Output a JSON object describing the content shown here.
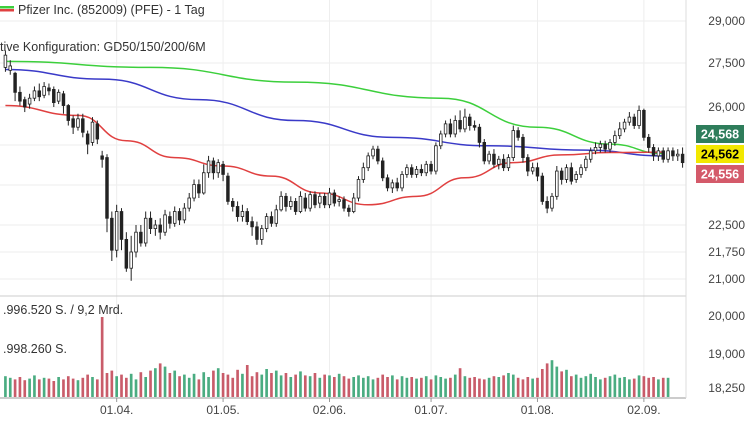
{
  "header": {
    "title": "Pfizer Inc. (852009) (PFE) - 1 Tag",
    "config": "tive Konfiguration: GD50/150/200/6M",
    "volume_line1": ".996.520 S. / 9,2 Mrd.",
    "volume_line2": ".998.260 S."
  },
  "colors": {
    "up": "#2a9d6b",
    "down": "#c04050",
    "ma_green": "#3ccf3c",
    "ma_blue": "#3a3ac8",
    "ma_red": "#e04040",
    "badge_green": "#2e7d5b",
    "badge_yellow": "#f2e800",
    "badge_red": "#d45a6a"
  },
  "badges": [
    {
      "label": "24,568",
      "color": "#2e7d5b",
      "text_color": "#ffffff"
    },
    {
      "label": "24,562",
      "color": "#f2e800",
      "text_color": "#000000"
    },
    {
      "label": "24,556",
      "color": "#d45a6a",
      "text_color": "#ffffff"
    }
  ],
  "chart_data": {
    "type": "candlestick",
    "price_axis": {
      "ticks": [
        {
          "value": 29.0,
          "label": "29,000"
        },
        {
          "value": 27.5,
          "label": "27,500"
        },
        {
          "value": 26.0,
          "label": "26,000"
        },
        {
          "value": 22.5,
          "label": "22,500"
        },
        {
          "value": 21.75,
          "label": "21,750"
        },
        {
          "value": 21.0,
          "label": "21,000"
        }
      ]
    },
    "volume_axis": {
      "ticks": [
        {
          "label": "20,000"
        },
        {
          "label": "19,000"
        },
        {
          "label": "18,250"
        }
      ]
    },
    "x_ticks": [
      {
        "label": "01.04.",
        "index": 23
      },
      {
        "label": "01.05.",
        "index": 45
      },
      {
        "label": "02.06.",
        "index": 67
      },
      {
        "label": "01.07.",
        "index": 88
      },
      {
        "label": "01.08.",
        "index": 110
      },
      {
        "label": "02.09.",
        "index": 132
      }
    ],
    "moving_averages": [
      {
        "color": "#3ccf3c",
        "points": [
          [
            0,
            27.56
          ],
          [
            30,
            27.35
          ],
          [
            60,
            26.85
          ],
          [
            90,
            26.3
          ],
          [
            110,
            25.4
          ],
          [
            125,
            24.9
          ],
          [
            136,
            24.62
          ]
        ]
      },
      {
        "color": "#3a3ac8",
        "points": [
          [
            0,
            27.28
          ],
          [
            20,
            26.95
          ],
          [
            40,
            26.25
          ],
          [
            60,
            25.6
          ],
          [
            80,
            25.1
          ],
          [
            100,
            24.85
          ],
          [
            120,
            24.72
          ],
          [
            136,
            24.55
          ]
        ]
      },
      {
        "color": "#e04040",
        "points": [
          [
            0,
            26.05
          ],
          [
            15,
            25.75
          ],
          [
            25,
            25.0
          ],
          [
            35,
            24.5
          ],
          [
            45,
            24.25
          ],
          [
            55,
            23.95
          ],
          [
            65,
            23.45
          ],
          [
            75,
            23.1
          ],
          [
            85,
            23.35
          ],
          [
            95,
            23.9
          ],
          [
            105,
            24.35
          ],
          [
            115,
            24.58
          ],
          [
            125,
            24.65
          ],
          [
            136,
            24.66
          ]
        ]
      }
    ],
    "candles": [
      [
        27.35,
        27.78,
        27.95,
        27.2
      ],
      [
        27.25,
        27.4,
        27.6,
        27.1
      ],
      [
        27.15,
        26.5,
        27.2,
        26.2
      ],
      [
        26.5,
        26.2,
        26.7,
        26.05
      ],
      [
        26.25,
        26.0,
        26.35,
        25.85
      ],
      [
        26.1,
        26.3,
        26.45,
        25.95
      ],
      [
        26.3,
        26.55,
        26.7,
        26.2
      ],
      [
        26.55,
        26.35,
        26.8,
        26.2
      ],
      [
        26.4,
        26.7,
        26.85,
        26.3
      ],
      [
        26.65,
        26.55,
        26.8,
        26.4
      ],
      [
        26.6,
        26.15,
        26.7,
        26.0
      ],
      [
        26.2,
        26.5,
        26.6,
        26.1
      ],
      [
        26.45,
        26.05,
        26.55,
        25.8
      ],
      [
        26.05,
        25.6,
        26.1,
        25.45
      ],
      [
        25.65,
        25.4,
        25.75,
        25.2
      ],
      [
        25.4,
        25.65,
        25.8,
        25.3
      ],
      [
        25.65,
        25.25,
        25.8,
        25.1
      ],
      [
        25.2,
        24.9,
        25.3,
        24.6
      ],
      [
        24.95,
        25.55,
        25.7,
        24.85
      ],
      [
        25.5,
        25.05,
        25.6,
        24.9
      ],
      [
        24.55,
        24.45,
        24.7,
        24.2
      ],
      [
        24.5,
        22.7,
        24.6,
        22.3
      ],
      [
        22.7,
        21.8,
        22.9,
        21.5
      ],
      [
        21.8,
        22.9,
        23.1,
        21.6
      ],
      [
        22.9,
        22.1,
        23.0,
        21.8
      ],
      [
        22.1,
        21.3,
        22.3,
        21.2
      ],
      [
        21.3,
        21.75,
        22.2,
        20.95
      ],
      [
        21.75,
        22.3,
        22.5,
        21.6
      ],
      [
        22.3,
        22.0,
        22.5,
        21.9
      ],
      [
        22.0,
        22.7,
        22.9,
        21.9
      ],
      [
        22.7,
        22.4,
        22.9,
        22.25
      ],
      [
        22.4,
        22.5,
        22.65,
        22.2
      ],
      [
        22.5,
        22.3,
        22.7,
        22.1
      ],
      [
        22.3,
        22.8,
        22.95,
        22.2
      ],
      [
        22.75,
        22.55,
        22.9,
        22.4
      ],
      [
        22.55,
        22.9,
        23.05,
        22.45
      ],
      [
        22.9,
        22.65,
        23.0,
        22.5
      ],
      [
        22.65,
        23.0,
        23.15,
        22.55
      ],
      [
        23.0,
        23.3,
        23.45,
        22.9
      ],
      [
        23.3,
        23.7,
        23.85,
        23.2
      ],
      [
        23.7,
        23.45,
        23.85,
        23.3
      ],
      [
        23.45,
        24.05,
        24.3,
        23.4
      ],
      [
        24.05,
        24.4,
        24.55,
        23.9
      ],
      [
        24.4,
        24.05,
        24.5,
        23.85
      ],
      [
        24.05,
        24.35,
        24.45,
        23.9
      ],
      [
        24.3,
        24.0,
        24.4,
        23.8
      ],
      [
        23.95,
        23.2,
        24.05,
        23.1
      ],
      [
        23.2,
        23.05,
        23.3,
        22.9
      ],
      [
        23.05,
        22.75,
        23.2,
        22.6
      ],
      [
        22.75,
        22.9,
        23.1,
        22.6
      ],
      [
        22.9,
        22.6,
        23.0,
        22.5
      ],
      [
        22.6,
        22.45,
        22.75,
        22.2
      ],
      [
        22.45,
        22.1,
        22.6,
        21.95
      ],
      [
        22.1,
        22.4,
        22.5,
        21.95
      ],
      [
        22.4,
        22.75,
        22.85,
        22.3
      ],
      [
        22.75,
        22.55,
        22.9,
        22.45
      ],
      [
        22.55,
        22.95,
        23.1,
        22.45
      ],
      [
        22.95,
        23.35,
        23.5,
        22.9
      ],
      [
        23.35,
        23.05,
        23.45,
        22.9
      ],
      [
        23.05,
        23.2,
        23.35,
        22.95
      ],
      [
        23.2,
        22.9,
        23.3,
        22.8
      ],
      [
        22.9,
        23.35,
        23.5,
        22.85
      ],
      [
        23.3,
        23.0,
        23.45,
        22.9
      ],
      [
        23.0,
        23.4,
        23.5,
        22.9
      ],
      [
        23.4,
        23.1,
        23.5,
        23.0
      ],
      [
        23.15,
        23.35,
        23.45,
        23.0
      ],
      [
        23.35,
        23.1,
        23.45,
        23.0
      ],
      [
        23.1,
        23.45,
        23.6,
        23.0
      ],
      [
        23.45,
        23.15,
        23.55,
        23.05
      ],
      [
        23.2,
        23.25,
        23.35,
        23.05
      ],
      [
        23.25,
        23.0,
        23.35,
        22.9
      ],
      [
        23.0,
        22.9,
        23.1,
        22.75
      ],
      [
        22.9,
        23.3,
        23.45,
        22.85
      ],
      [
        23.3,
        23.85,
        23.95,
        23.2
      ],
      [
        23.85,
        24.2,
        24.35,
        23.75
      ],
      [
        24.2,
        24.55,
        24.65,
        24.1
      ],
      [
        24.55,
        24.75,
        24.85,
        24.45
      ],
      [
        24.75,
        24.4,
        24.85,
        24.3
      ],
      [
        24.4,
        23.9,
        24.5,
        23.8
      ],
      [
        23.9,
        23.6,
        24.0,
        23.5
      ],
      [
        23.6,
        23.75,
        23.85,
        23.45
      ],
      [
        23.75,
        23.6,
        23.9,
        23.5
      ],
      [
        23.6,
        24.0,
        24.1,
        23.5
      ],
      [
        24.0,
        24.2,
        24.3,
        23.9
      ],
      [
        24.2,
        24.0,
        24.3,
        23.9
      ],
      [
        24.0,
        24.15,
        24.25,
        23.9
      ],
      [
        24.15,
        24.05,
        24.3,
        23.95
      ],
      [
        24.05,
        24.3,
        24.4,
        23.95
      ],
      [
        24.3,
        24.1,
        24.4,
        24.0
      ],
      [
        24.1,
        24.85,
        24.95,
        24.0
      ],
      [
        24.85,
        25.2,
        25.3,
        24.75
      ],
      [
        25.2,
        25.5,
        25.6,
        25.1
      ],
      [
        25.5,
        25.2,
        25.65,
        25.1
      ],
      [
        25.2,
        25.6,
        25.75,
        25.1
      ],
      [
        25.6,
        25.35,
        25.9,
        25.25
      ],
      [
        25.35,
        25.7,
        25.95,
        25.25
      ],
      [
        25.7,
        25.45,
        25.8,
        25.3
      ],
      [
        25.45,
        25.4,
        25.6,
        25.3
      ],
      [
        25.4,
        24.95,
        25.5,
        24.8
      ],
      [
        24.95,
        24.4,
        25.05,
        24.3
      ],
      [
        24.4,
        24.6,
        24.7,
        24.3
      ],
      [
        24.6,
        24.3,
        24.75,
        24.2
      ],
      [
        24.3,
        24.45,
        24.55,
        24.15
      ],
      [
        24.45,
        24.2,
        24.6,
        24.1
      ],
      [
        24.2,
        24.5,
        24.6,
        24.1
      ],
      [
        24.5,
        25.3,
        25.45,
        24.4
      ],
      [
        25.3,
        25.1,
        25.4,
        25.0
      ],
      [
        25.1,
        24.5,
        25.2,
        24.35
      ],
      [
        24.5,
        24.1,
        24.6,
        23.95
      ],
      [
        24.1,
        24.2,
        24.35,
        24.0
      ],
      [
        24.2,
        23.95,
        24.35,
        23.8
      ],
      [
        23.95,
        23.2,
        24.05,
        23.1
      ],
      [
        23.2,
        23.0,
        23.35,
        22.85
      ],
      [
        23.0,
        23.35,
        23.45,
        22.9
      ],
      [
        23.35,
        24.1,
        24.25,
        23.25
      ],
      [
        24.1,
        23.85,
        24.2,
        23.7
      ],
      [
        23.85,
        24.2,
        24.3,
        23.75
      ],
      [
        24.2,
        23.8,
        24.35,
        23.7
      ],
      [
        23.85,
        24.0,
        24.1,
        23.75
      ],
      [
        24.0,
        24.2,
        24.3,
        23.9
      ],
      [
        24.2,
        24.45,
        24.55,
        24.1
      ],
      [
        24.45,
        24.7,
        24.8,
        24.35
      ],
      [
        24.7,
        24.8,
        24.95,
        24.6
      ],
      [
        24.8,
        24.9,
        25.0,
        24.65
      ],
      [
        24.9,
        24.75,
        25.0,
        24.65
      ],
      [
        24.75,
        24.95,
        25.05,
        24.65
      ],
      [
        24.95,
        25.15,
        25.3,
        24.85
      ],
      [
        25.15,
        25.35,
        25.55,
        25.05
      ],
      [
        25.35,
        25.55,
        25.65,
        25.25
      ],
      [
        25.55,
        25.7,
        25.85,
        25.45
      ],
      [
        25.7,
        25.45,
        25.8,
        25.35
      ],
      [
        25.45,
        25.9,
        26.05,
        25.35
      ],
      [
        25.9,
        25.1,
        25.95,
        25.0
      ],
      [
        25.1,
        24.8,
        25.2,
        24.65
      ],
      [
        24.8,
        24.55,
        24.9,
        24.4
      ],
      [
        24.55,
        24.7,
        24.8,
        24.4
      ],
      [
        24.7,
        24.45,
        24.8,
        24.35
      ],
      [
        24.45,
        24.7,
        24.8,
        24.35
      ],
      [
        24.7,
        24.55,
        24.8,
        24.4
      ],
      [
        24.55,
        24.6,
        24.75,
        24.4
      ],
      [
        24.6,
        24.35,
        24.8,
        24.2
      ]
    ],
    "volumes_rel": [
      0.26,
      0.24,
      0.22,
      0.25,
      0.21,
      0.23,
      0.27,
      0.22,
      0.24,
      0.23,
      0.2,
      0.25,
      0.22,
      0.26,
      0.23,
      0.21,
      0.24,
      0.28,
      0.25,
      0.22,
      1.0,
      0.3,
      0.33,
      0.26,
      0.28,
      0.24,
      0.29,
      0.22,
      0.31,
      0.25,
      0.33,
      0.36,
      0.42,
      0.38,
      0.3,
      0.33,
      0.26,
      0.28,
      0.24,
      0.29,
      0.22,
      0.31,
      0.25,
      0.33,
      0.36,
      0.3,
      0.28,
      0.24,
      0.34,
      0.29,
      0.4,
      0.26,
      0.31,
      0.28,
      0.35,
      0.3,
      0.33,
      0.27,
      0.3,
      0.25,
      0.28,
      0.32,
      0.27,
      0.26,
      0.3,
      0.24,
      0.28,
      0.27,
      0.25,
      0.29,
      0.26,
      0.23,
      0.25,
      0.27,
      0.24,
      0.26,
      0.22,
      0.24,
      0.28,
      0.25,
      0.27,
      0.22,
      0.26,
      0.24,
      0.25,
      0.23,
      0.24,
      0.26,
      0.22,
      0.27,
      0.25,
      0.23,
      0.24,
      0.28,
      0.36,
      0.26,
      0.24,
      0.25,
      0.23,
      0.22,
      0.24,
      0.26,
      0.25,
      0.27,
      0.3,
      0.28,
      0.24,
      0.22,
      0.25,
      0.23,
      0.24,
      0.35,
      0.42,
      0.46,
      0.38,
      0.32,
      0.34,
      0.26,
      0.28,
      0.24,
      0.26,
      0.29,
      0.25,
      0.22,
      0.24,
      0.26,
      0.28,
      0.24,
      0.25,
      0.22,
      0.23,
      0.27,
      0.26,
      0.24,
      0.25,
      0.22,
      0.24,
      0.24
    ]
  }
}
